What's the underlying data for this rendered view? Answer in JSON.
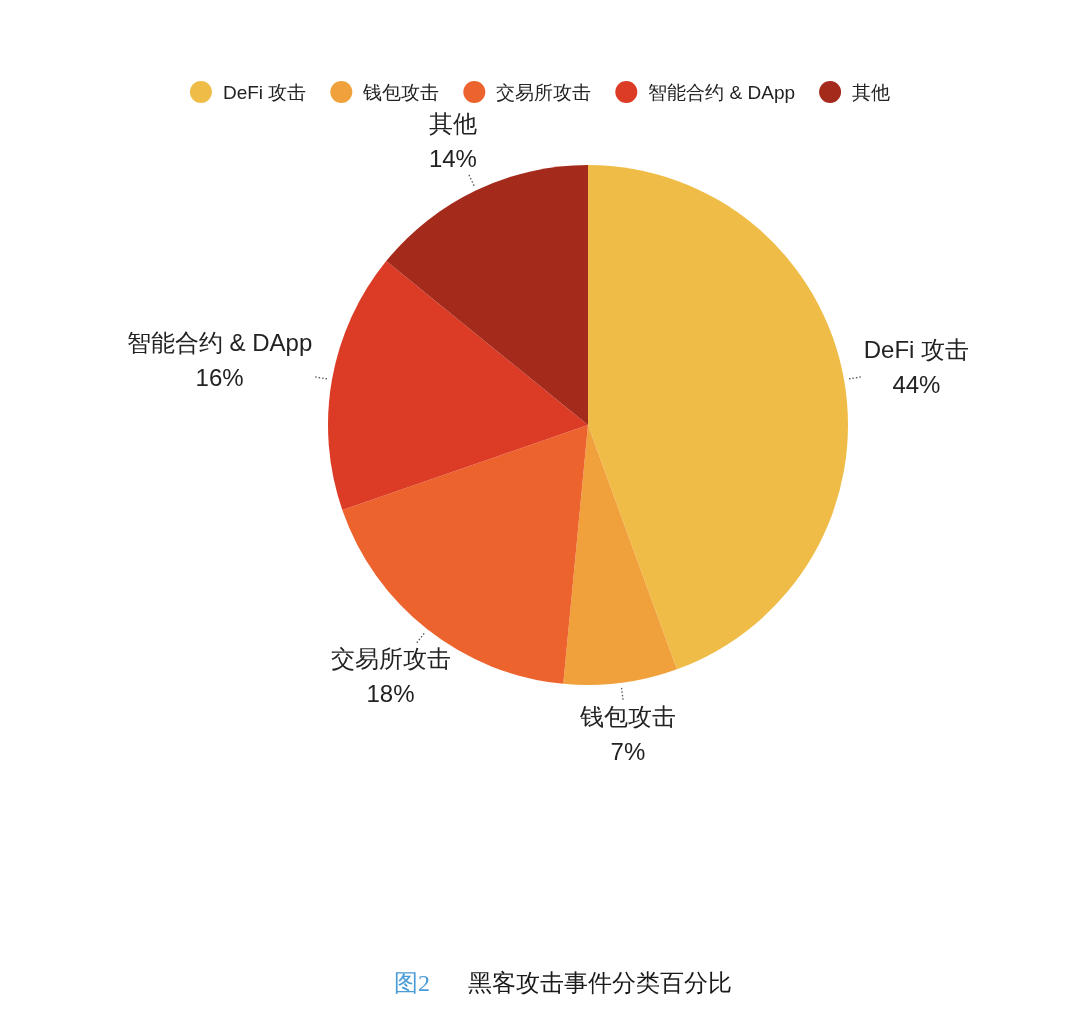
{
  "chart_data": {
    "type": "pie",
    "categories": [
      "DeFi 攻击",
      "钱包攻击",
      "交易所攻击",
      "智能合约 & DApp",
      "其他"
    ],
    "values": [
      44,
      7,
      18,
      16,
      14
    ],
    "colors": [
      "#efbd47",
      "#f1a13b",
      "#ec632e",
      "#dc3b25",
      "#a42a1b"
    ],
    "value_labels": [
      "44%",
      "7%",
      "18%",
      "16%",
      "14%"
    ],
    "legend": "top",
    "annotations": [
      "图2",
      "黑客攻击事件分类百分比"
    ]
  }
}
